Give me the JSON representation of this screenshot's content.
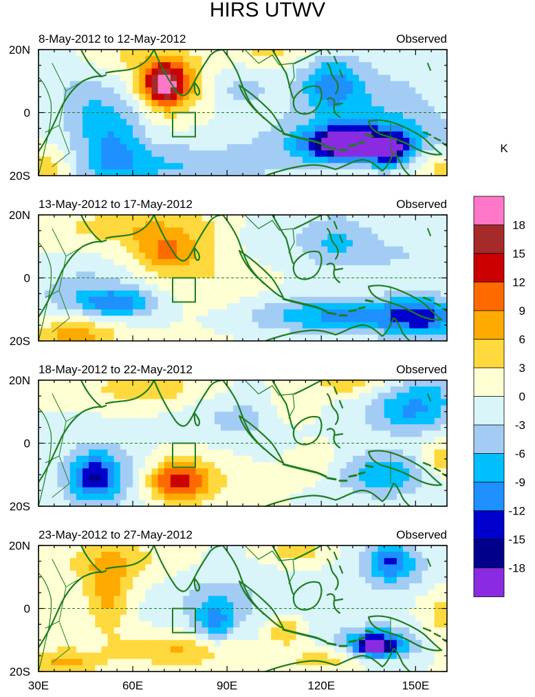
{
  "chart_data": {
    "type": "heatmap",
    "title": "HIRS UTWV",
    "units_label": "K",
    "x_axis": {
      "range": [
        30,
        160
      ],
      "ticks": [
        30,
        60,
        90,
        120,
        150
      ],
      "tick_labels": [
        "30E",
        "60E",
        "90E",
        "120E",
        "150E"
      ]
    },
    "y_axis": {
      "range": [
        -20,
        20
      ],
      "ticks": [
        20,
        0,
        -20
      ],
      "tick_labels": [
        "20N",
        "0",
        "20S"
      ]
    },
    "colorbar": {
      "levels": [
        -18,
        -15,
        -12,
        -9,
        -6,
        -3,
        0,
        3,
        6,
        9,
        12,
        15,
        18
      ],
      "labels": [
        "18",
        "15",
        "12",
        "9",
        "6",
        "3",
        "0",
        "-3",
        "-6",
        "-9",
        "-12",
        "-15",
        "-18"
      ],
      "colors": [
        "#8a2be2",
        "#00008b",
        "#0000cd",
        "#1e90ff",
        "#00bfff",
        "#a3ccf5",
        "#d9f5fa",
        "#ffffd4",
        "#ffd93d",
        "#ffaa00",
        "#ff6a00",
        "#cc0000",
        "#a52a2a",
        "#ff77c8"
      ]
    },
    "panels": [
      {
        "period": "8-May-2012 to 12-May-2012",
        "label": "Observed",
        "anomalies": [
          {
            "lon": 70,
            "lat": 9,
            "value": 17,
            "sx": 5,
            "sy": 5
          },
          {
            "lon": 76,
            "lat": 10,
            "value": 5,
            "sx": 11,
            "sy": 7
          },
          {
            "lon": 58,
            "lat": 18,
            "value": 3,
            "sx": 10,
            "sy": 4
          },
          {
            "lon": 104,
            "lat": 19,
            "value": 4,
            "sx": 8,
            "sy": 3
          },
          {
            "lon": 32,
            "lat": -17,
            "value": 6,
            "sx": 6,
            "sy": 4
          },
          {
            "lon": 158,
            "lat": -17,
            "value": 5,
            "sx": 6,
            "sy": 4
          },
          {
            "lon": 128,
            "lat": -10,
            "value": -19,
            "sx": 8,
            "sy": 3
          },
          {
            "lon": 142,
            "lat": -12,
            "value": -13,
            "sx": 4,
            "sy": 3
          },
          {
            "lon": 132,
            "lat": -9,
            "value": -9,
            "sx": 20,
            "sy": 6
          },
          {
            "lon": 123,
            "lat": 9,
            "value": -9,
            "sx": 7,
            "sy": 6
          },
          {
            "lon": 54,
            "lat": -8,
            "value": -8,
            "sx": 7,
            "sy": 11
          },
          {
            "lon": 72,
            "lat": -17,
            "value": -6,
            "sx": 22,
            "sy": 5
          },
          {
            "lon": 93,
            "lat": 8,
            "value": -5,
            "sx": 8,
            "sy": 5
          },
          {
            "lon": 138,
            "lat": 4,
            "value": -4,
            "sx": 16,
            "sy": 9
          },
          {
            "lon": 43,
            "lat": 2,
            "value": -4,
            "sx": 6,
            "sy": 9
          }
        ]
      },
      {
        "period": "13-May-2012 to 17-May-2012",
        "label": "Observed",
        "anomalies": [
          {
            "lon": 70,
            "lat": 8,
            "value": 8,
            "sx": 7,
            "sy": 5
          },
          {
            "lon": 58,
            "lat": 16,
            "value": 5,
            "sx": 16,
            "sy": 4
          },
          {
            "lon": 42,
            "lat": -18,
            "value": 8,
            "sx": 9,
            "sy": 4
          },
          {
            "lon": 86,
            "lat": 5,
            "value": 3,
            "sx": 12,
            "sy": 14
          },
          {
            "lon": 130,
            "lat": -12,
            "value": -10,
            "sx": 24,
            "sy": 4
          },
          {
            "lon": 152,
            "lat": -13,
            "value": -8,
            "sx": 8,
            "sy": 5
          },
          {
            "lon": 56,
            "lat": -8,
            "value": -9,
            "sx": 8,
            "sy": 3
          },
          {
            "lon": 45,
            "lat": -5,
            "value": -5,
            "sx": 12,
            "sy": 6
          },
          {
            "lon": 124,
            "lat": 12,
            "value": -6,
            "sx": 8,
            "sy": 6
          },
          {
            "lon": 145,
            "lat": 7,
            "value": -3,
            "sx": 14,
            "sy": 6
          },
          {
            "lon": 100,
            "lat": 12,
            "value": -3,
            "sx": 8,
            "sy": 6
          }
        ]
      },
      {
        "period": "18-May-2012 to 22-May-2012",
        "label": "Observed",
        "anomalies": [
          {
            "lon": 74,
            "lat": -12,
            "value": 10,
            "sx": 6,
            "sy": 4
          },
          {
            "lon": 78,
            "lat": -12,
            "value": 5,
            "sx": 10,
            "sy": 6
          },
          {
            "lon": 65,
            "lat": 17,
            "value": 5,
            "sx": 14,
            "sy": 4
          },
          {
            "lon": 110,
            "lat": 11,
            "value": 4,
            "sx": 6,
            "sy": 5
          },
          {
            "lon": 118,
            "lat": -6,
            "value": 3,
            "sx": 5,
            "sy": 4
          },
          {
            "lon": 128,
            "lat": 19,
            "value": 5,
            "sx": 7,
            "sy": 3
          },
          {
            "lon": 158,
            "lat": -5,
            "value": 6,
            "sx": 4,
            "sy": 4
          },
          {
            "lon": 48,
            "lat": -11,
            "value": -10,
            "sx": 5,
            "sy": 5
          },
          {
            "lon": 50,
            "lat": -10,
            "value": -6,
            "sx": 10,
            "sy": 8
          },
          {
            "lon": 140,
            "lat": -10,
            "value": -9,
            "sx": 10,
            "sy": 5
          },
          {
            "lon": 148,
            "lat": 10,
            "value": -9,
            "sx": 10,
            "sy": 5
          },
          {
            "lon": 155,
            "lat": 17,
            "value": -4,
            "sx": 7,
            "sy": 4
          },
          {
            "lon": 96,
            "lat": 8,
            "value": -4,
            "sx": 14,
            "sy": 6
          }
        ]
      },
      {
        "period": "23-May-2012 to 27-May-2012",
        "label": "Observed",
        "anomalies": [
          {
            "lon": 137,
            "lat": -12,
            "value": -16,
            "sx": 4,
            "sy": 2
          },
          {
            "lon": 138,
            "lat": -11,
            "value": -10,
            "sx": 10,
            "sy": 4
          },
          {
            "lon": 142,
            "lat": 15,
            "value": -9,
            "sx": 5,
            "sy": 4
          },
          {
            "lon": 144,
            "lat": 12,
            "value": -4,
            "sx": 12,
            "sy": 6
          },
          {
            "lon": 86,
            "lat": -4,
            "value": -8,
            "sx": 4,
            "sy": 5
          },
          {
            "lon": 88,
            "lat": 2,
            "value": -4,
            "sx": 14,
            "sy": 10
          },
          {
            "lon": 52,
            "lat": 5,
            "value": 7,
            "sx": 5,
            "sy": 9
          },
          {
            "lon": 56,
            "lat": 15,
            "value": 4,
            "sx": 18,
            "sy": 5
          },
          {
            "lon": 76,
            "lat": -13,
            "value": 7,
            "sx": 14,
            "sy": 4
          },
          {
            "lon": 38,
            "lat": -17,
            "value": 7,
            "sx": 8,
            "sy": 3
          },
          {
            "lon": 108,
            "lat": -7,
            "value": 7,
            "sx": 4,
            "sy": 3
          },
          {
            "lon": 112,
            "lat": 18,
            "value": 5,
            "sx": 8,
            "sy": 3
          },
          {
            "lon": 122,
            "lat": -16,
            "value": 5,
            "sx": 10,
            "sy": 3
          },
          {
            "lon": 158,
            "lat": -3,
            "value": 4,
            "sx": 5,
            "sy": 8
          }
        ]
      }
    ]
  },
  "colors": {
    "coast": "#1e7d1e",
    "box": "#1e7d1e",
    "equator": "#1e7d1e"
  }
}
